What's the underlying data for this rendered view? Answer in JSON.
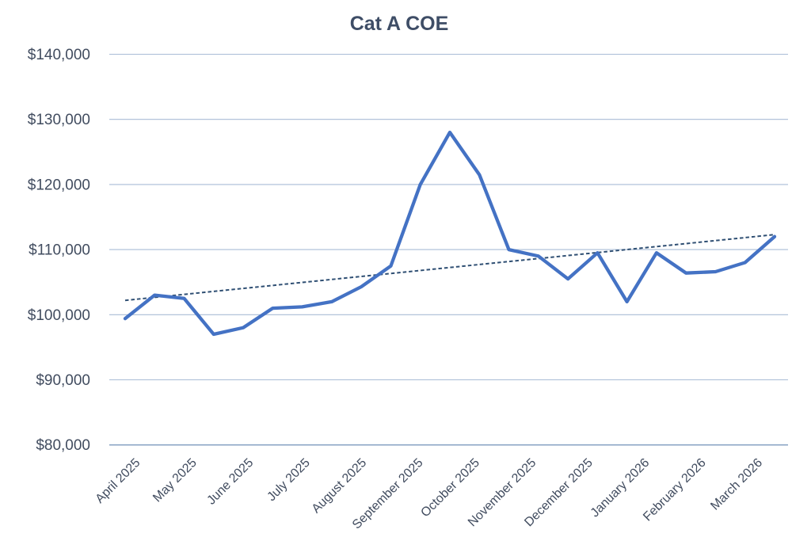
{
  "chart_data": {
    "type": "line",
    "title": "Cat A COE",
    "categories": [
      "April 2025",
      "May 2025",
      "June 2025",
      "July 2025",
      "August 2025",
      "September 2025",
      "October 2025",
      "November 2025",
      "December 2025",
      "January 2026",
      "February 2026",
      "March 2026"
    ],
    "points_per_category": 2,
    "points_in_last_category": 1,
    "series": [
      {
        "name": "Cat A COE",
        "values": [
          99400,
          103000,
          102500,
          97000,
          98000,
          101000,
          101200,
          102000,
          104300,
          107500,
          120000,
          128000,
          121500,
          110000,
          109000,
          105500,
          109500,
          102000,
          109500,
          106400,
          106600,
          108000,
          112000
        ]
      }
    ],
    "trendline": {
      "type": "linear",
      "style": "dashed",
      "start_value": 102200,
      "end_value": 112300
    },
    "ylim": [
      80000,
      140000
    ],
    "ytick_step": 10000,
    "ytick_labels": [
      "$140,000",
      "$130,000",
      "$120,000",
      "$110,000",
      "$100,000",
      "$90,000",
      "$80,000"
    ],
    "xlabel": "",
    "ylabel": "",
    "legend": "none",
    "grid": "horizontal",
    "colors": {
      "line": "#4472C4",
      "trendline": "#2F4F73",
      "gridline": "#A9BCD6",
      "baseline": "#8CA5C6",
      "title_text": "#3E4D66",
      "axis_text": "#414C5F",
      "background": "#FFFFFF"
    }
  }
}
